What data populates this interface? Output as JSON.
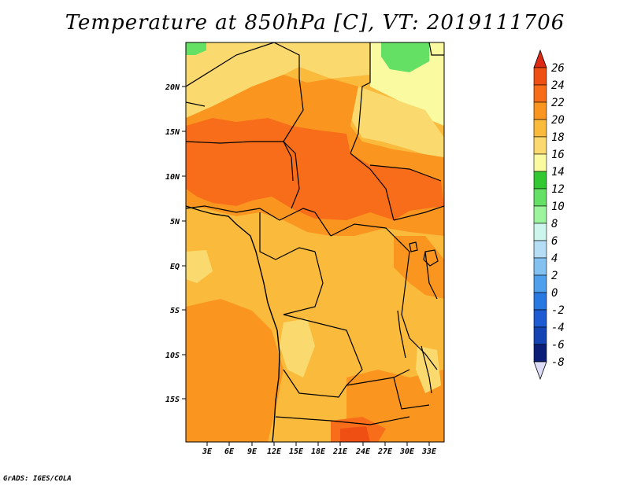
{
  "title": "Temperature at 850hPa [C], VT: 2019111706",
  "credit": "GrADS: IGES/COLA",
  "lat_labels": [
    "20N",
    "15N",
    "10N",
    "5N",
    "EQ",
    "5S",
    "10S",
    "15S"
  ],
  "lon_labels": [
    "3E",
    "6E",
    "9E",
    "12E",
    "15E",
    "18E",
    "21E",
    "24E",
    "27E",
    "30E",
    "33E"
  ],
  "colorbar": {
    "levels": [
      "26",
      "24",
      "22",
      "20",
      "18",
      "16",
      "14",
      "12",
      "10",
      "8",
      "6",
      "4",
      "2",
      "0",
      "-2",
      "-4",
      "-6",
      "-8"
    ],
    "colors": [
      "#dc2a14",
      "#f04f14",
      "#f86d1a",
      "#fa9620",
      "#faba3c",
      "#fada6e",
      "#fafaa0",
      "#32c832",
      "#64e164",
      "#9cf59c",
      "#ccf6ec",
      "#b6ddf6",
      "#82c1f0",
      "#4ea0ec",
      "#2878e1",
      "#1e5ad2",
      "#1444b4",
      "#0a1e78",
      "#dcdcf6"
    ]
  }
}
